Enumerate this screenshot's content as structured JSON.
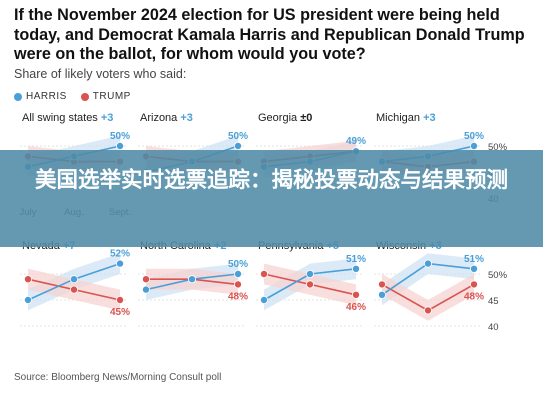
{
  "title": "If the November 2024 election for US president were being held today, and Democrat Kamala Harris and Republican Donald Trump were on the ballot, for whom would you vote?",
  "subtitle": "Share of likely voters who said:",
  "legend": [
    {
      "label": "HARRIS",
      "color": "#4a9fd8"
    },
    {
      "label": "TRUMP",
      "color": "#d9534f"
    }
  ],
  "banner_text": "美国选举实时选票追踪：揭秘投票动态与结果预测",
  "source": "Source: Bloomberg News/Morning Consult poll",
  "colors": {
    "harris": "#4a9fd8",
    "trump": "#d9534f",
    "harris_band": "#cfe3f3",
    "trump_band": "#f6d3d2",
    "accent": "#4a9fd8"
  },
  "chart_data": {
    "type": "line",
    "x": [
      "July",
      "Aug.",
      "Sept."
    ],
    "ylim": [
      40,
      50
    ],
    "y_ticks": [
      "50%",
      "45",
      "40"
    ],
    "panels": [
      {
        "name": "All swing states",
        "margin_label": "+3",
        "harris": [
          46,
          48,
          50
        ],
        "trump": [
          48,
          47,
          47
        ],
        "harris_label": "50%",
        "trump_label": ""
      },
      {
        "name": "Arizona",
        "margin_label": "+3",
        "harris": [
          45,
          47,
          50
        ],
        "trump": [
          48,
          47,
          47
        ],
        "harris_label": "50%",
        "trump_label": ""
      },
      {
        "name": "Georgia",
        "margin_label": "±0",
        "harris": [
          46,
          47,
          49
        ],
        "trump": [
          47,
          48,
          49
        ],
        "harris_label": "49%",
        "trump_label": ""
      },
      {
        "name": "Michigan",
        "margin_label": "+3",
        "harris": [
          47,
          48,
          50
        ],
        "trump": [
          47,
          46,
          47
        ],
        "harris_label": "50%",
        "trump_label": ""
      },
      {
        "name": "Nevada",
        "margin_label": "+7",
        "harris": [
          45,
          49,
          52
        ],
        "trump": [
          49,
          47,
          45
        ],
        "harris_label": "52%",
        "trump_label": "45%"
      },
      {
        "name": "North Carolina",
        "margin_label": "+2",
        "harris": [
          47,
          49,
          50
        ],
        "trump": [
          49,
          49,
          48
        ],
        "harris_label": "50%",
        "trump_label": "48%"
      },
      {
        "name": "Pennsylvania",
        "margin_label": "+5",
        "harris": [
          45,
          50,
          51
        ],
        "trump": [
          50,
          48,
          46
        ],
        "harris_label": "51%",
        "trump_label": "46%"
      },
      {
        "name": "Wisconsin",
        "margin_label": "+3",
        "harris": [
          46,
          52,
          51
        ],
        "trump": [
          48,
          43,
          48
        ],
        "harris_label": "51%",
        "trump_label": "48%"
      }
    ],
    "bottom_ticks": [
      "50%",
      "45",
      "40"
    ]
  }
}
